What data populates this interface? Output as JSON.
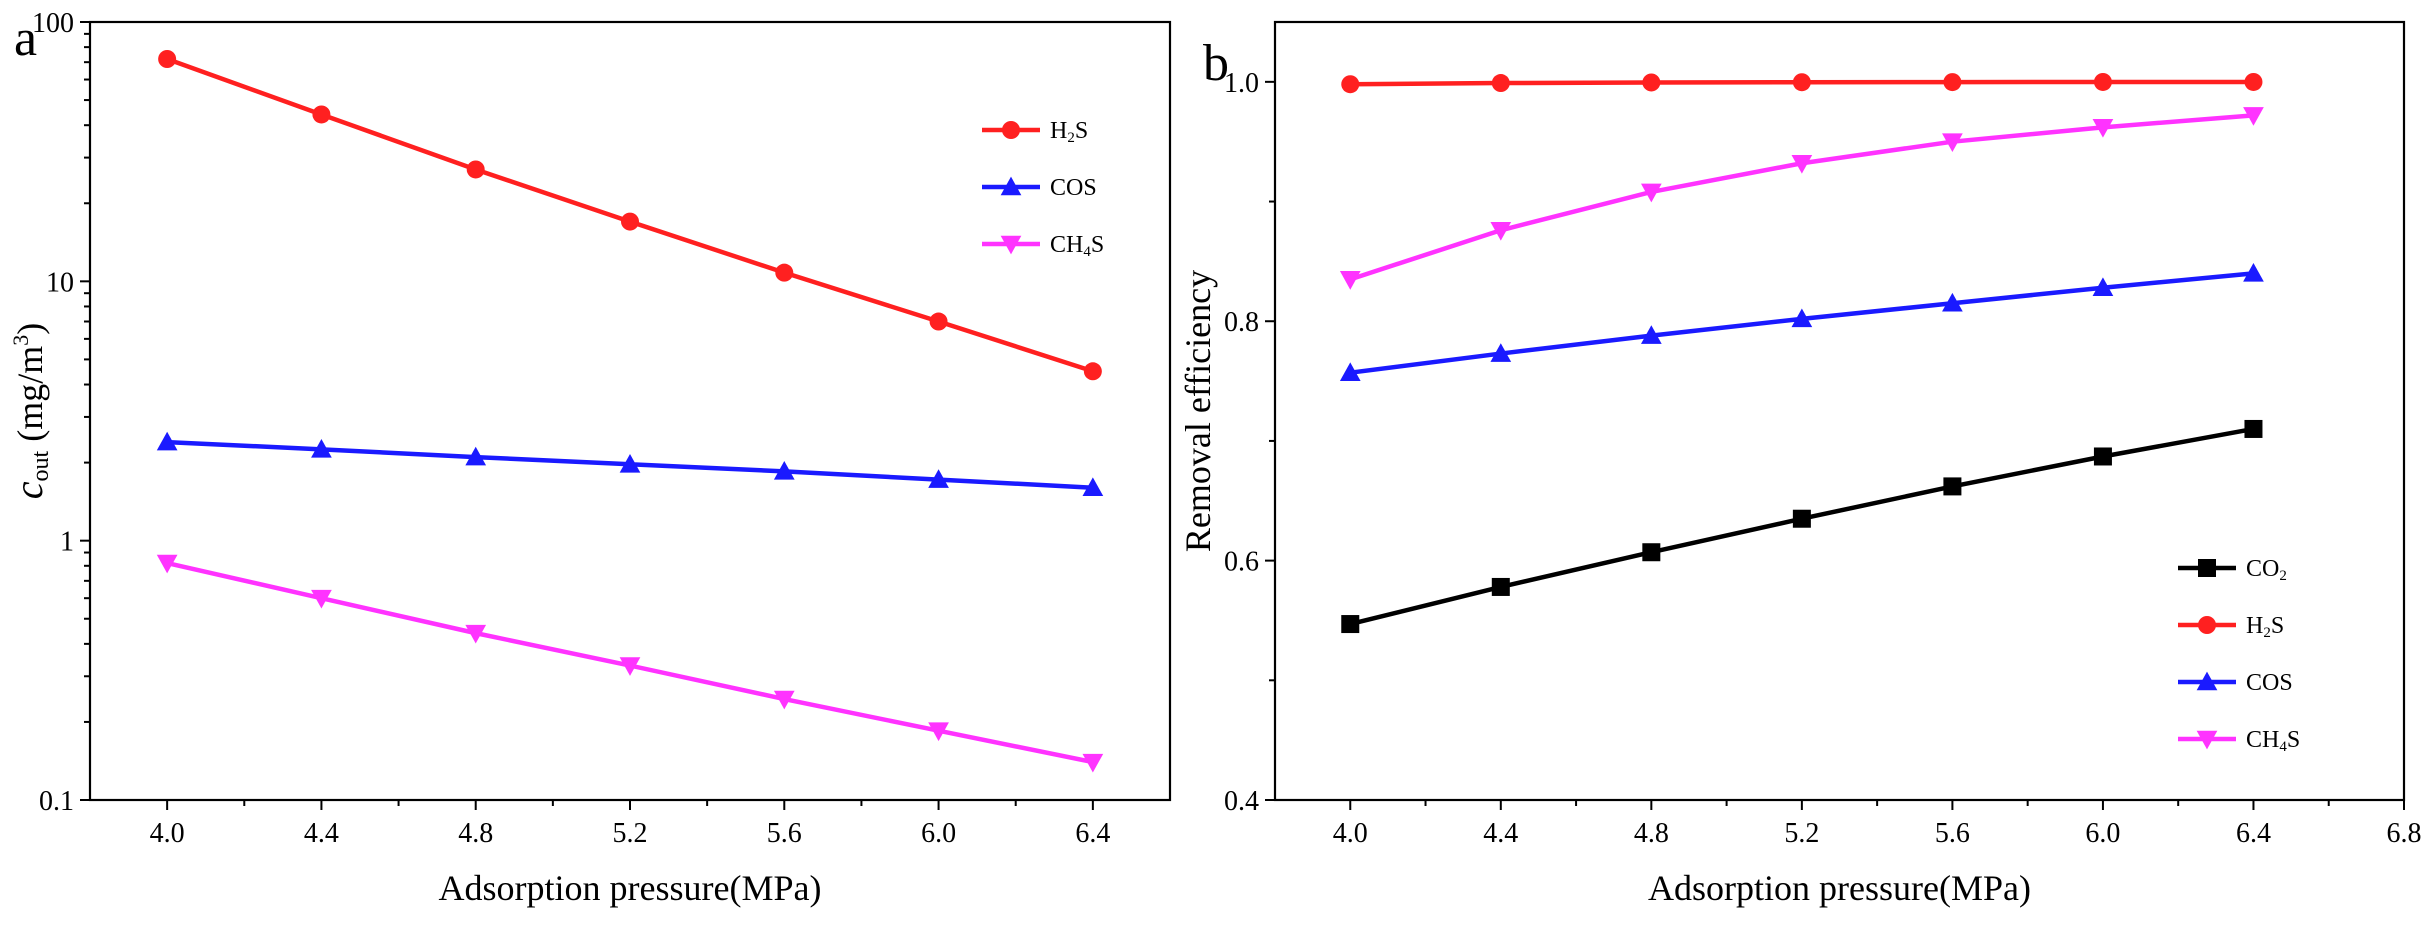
{
  "chart_data": [
    {
      "panel": "a",
      "type": "line",
      "xlabel": "Adsorption pressure(MPa)",
      "ylabel": "cout (mg/m3)",
      "ylabel_main": "c",
      "ylabel_sub": "out",
      "ylabel_unit_pre": " (mg/m",
      "ylabel_unit_sup": "3",
      "ylabel_unit_post": ")",
      "yscale": "log",
      "xlim": [
        3.8,
        6.6
      ],
      "ylim": [
        0.1,
        100
      ],
      "xticks": [
        4.0,
        4.4,
        4.8,
        5.2,
        5.6,
        6.0,
        6.4
      ],
      "xtick_labels": [
        "4.0",
        "4.4",
        "4.8",
        "5.2",
        "5.6",
        "6.0",
        "6.4"
      ],
      "yticks": [
        0.1,
        1,
        10,
        100
      ],
      "ytick_labels": [
        "0.1",
        "1",
        "10",
        "100"
      ],
      "legend_position": "top-right",
      "x": [
        4.0,
        4.4,
        4.8,
        5.2,
        5.6,
        6.0,
        6.4
      ],
      "series": [
        {
          "name": "H2S",
          "name_main": "H",
          "name_sub": "2",
          "name_post": "S",
          "color": "#ff2020",
          "marker": "circle",
          "values": [
            72,
            44,
            27,
            17,
            10.8,
            7.0,
            4.5
          ]
        },
        {
          "name": "COS",
          "name_main": "COS",
          "name_sub": "",
          "name_post": "",
          "color": "#1a1aff",
          "marker": "triangle-up",
          "values": [
            2.4,
            2.25,
            2.1,
            1.97,
            1.85,
            1.72,
            1.6
          ]
        },
        {
          "name": "CH4S",
          "name_main": "CH",
          "name_sub": "4",
          "name_post": "S",
          "color": "#ff33ff",
          "marker": "triangle-down",
          "values": [
            0.82,
            0.6,
            0.44,
            0.33,
            0.245,
            0.185,
            0.14
          ]
        }
      ]
    },
    {
      "panel": "b",
      "type": "line",
      "xlabel": "Adsorption pressure(MPa)",
      "ylabel": "Removal efficiency",
      "yscale": "linear",
      "xlim": [
        3.8,
        6.8
      ],
      "ylim": [
        0.4,
        1.05
      ],
      "xticks": [
        4.0,
        4.4,
        4.8,
        5.2,
        5.6,
        6.0,
        6.4,
        6.8
      ],
      "xtick_labels": [
        "4.0",
        "4.4",
        "4.8",
        "5.2",
        "5.6",
        "6.0",
        "6.4",
        "6.8"
      ],
      "yticks": [
        0.4,
        0.6,
        0.8,
        1.0
      ],
      "ytick_labels": [
        "0.4",
        "0.6",
        "0.8",
        "1.0"
      ],
      "legend_position": "bottom-right",
      "x": [
        4.0,
        4.4,
        4.8,
        5.2,
        5.6,
        6.0,
        6.4
      ],
      "series": [
        {
          "name": "CO2",
          "name_main": "CO",
          "name_sub": "2",
          "name_post": "",
          "color": "#000000",
          "marker": "square",
          "values": [
            0.547,
            0.578,
            0.607,
            0.635,
            0.662,
            0.687,
            0.71
          ]
        },
        {
          "name": "H2S",
          "name_main": "H",
          "name_sub": "2",
          "name_post": "S",
          "color": "#ff2020",
          "marker": "circle",
          "values": [
            0.998,
            0.999,
            0.9995,
            0.9997,
            0.9998,
            0.9999,
            0.9999
          ]
        },
        {
          "name": "COS",
          "name_main": "COS",
          "name_sub": "",
          "name_post": "",
          "color": "#1a1aff",
          "marker": "triangle-up",
          "values": [
            0.757,
            0.773,
            0.788,
            0.802,
            0.815,
            0.828,
            0.84
          ]
        },
        {
          "name": "CH4S",
          "name_main": "CH",
          "name_sub": "4",
          "name_post": "S",
          "color": "#ff33ff",
          "marker": "triangle-down",
          "values": [
            0.835,
            0.876,
            0.908,
            0.932,
            0.95,
            0.962,
            0.972
          ]
        }
      ]
    }
  ]
}
